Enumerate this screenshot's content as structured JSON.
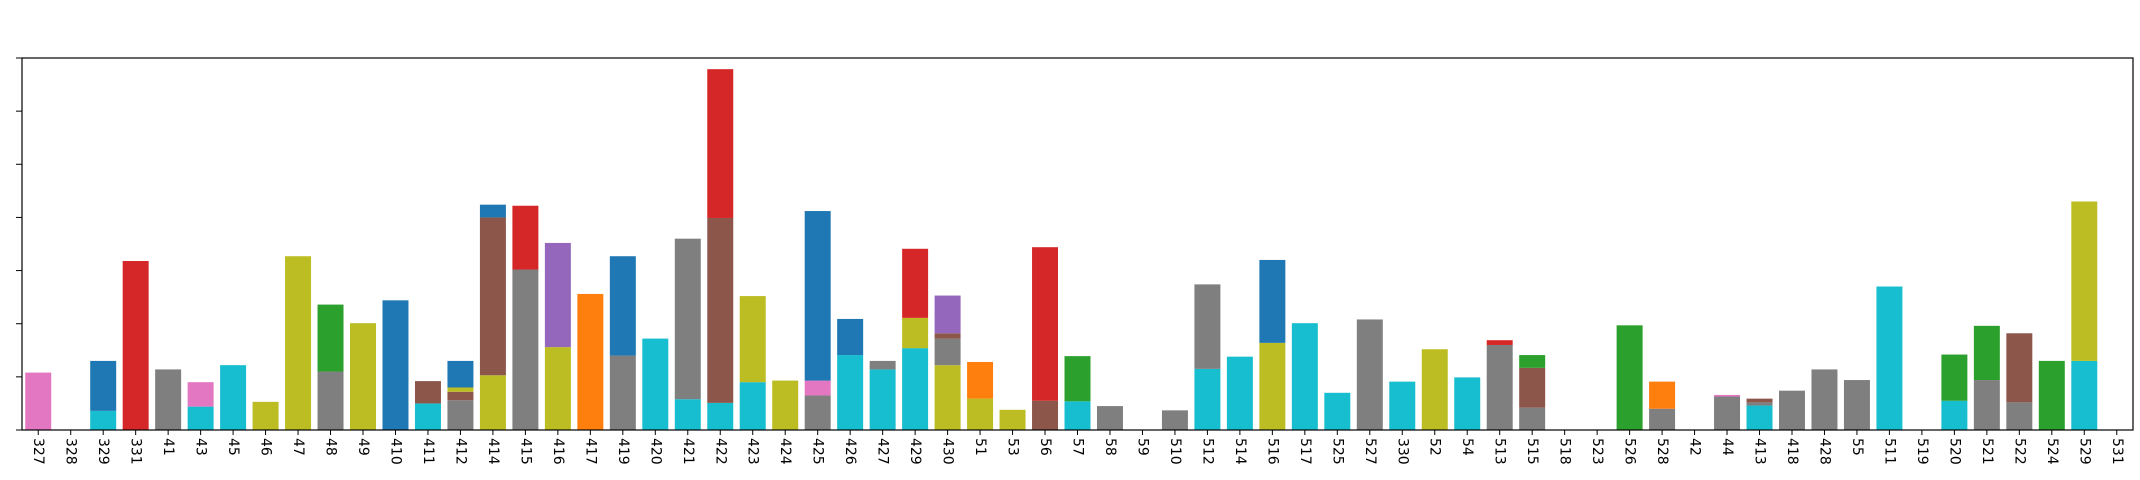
{
  "chart_data": {
    "type": "bar",
    "stacked": true,
    "title": "",
    "xlabel": "",
    "ylabel": "",
    "ylim": [
      0,
      70
    ],
    "grid": false,
    "legend": "none",
    "ytick_values": [
      0,
      10,
      20,
      30,
      40,
      50,
      60,
      70
    ],
    "y_tick_labels_visible": false,
    "colors": {
      "blue": "#1f77b4",
      "orange": "#ff7f0e",
      "green": "#2ca02c",
      "red": "#d62728",
      "purple": "#9467bd",
      "brown": "#8c564b",
      "pink": "#e377c2",
      "gray": "#7f7f7f",
      "olive": "#bcbd22",
      "cyan": "#17becf"
    },
    "categories": [
      "327",
      "328",
      "329",
      "331",
      "41",
      "43",
      "45",
      "46",
      "47",
      "48",
      "49",
      "410",
      "411",
      "412",
      "414",
      "415",
      "416",
      "417",
      "419",
      "420",
      "421",
      "422",
      "423",
      "424",
      "425",
      "426",
      "427",
      "429",
      "430",
      "51",
      "53",
      "56",
      "57",
      "58",
      "59",
      "510",
      "512",
      "514",
      "516",
      "517",
      "525",
      "527",
      "330",
      "52",
      "54",
      "513",
      "515",
      "518",
      "523",
      "526",
      "528",
      "42",
      "44",
      "413",
      "418",
      "428",
      "55",
      "511",
      "519",
      "520",
      "521",
      "522",
      "524",
      "529",
      "531"
    ],
    "stacks": [
      [
        [
          "pink",
          10.8
        ]
      ],
      [],
      [
        [
          "cyan",
          3.6
        ],
        [
          "blue",
          9.4
        ]
      ],
      [
        [
          "red",
          31.8
        ]
      ],
      [
        [
          "gray",
          11.4
        ]
      ],
      [
        [
          "cyan",
          4.4
        ],
        [
          "pink",
          4.6
        ]
      ],
      [
        [
          "cyan",
          12.2
        ]
      ],
      [
        [
          "olive",
          5.3
        ]
      ],
      [
        [
          "olive",
          32.7
        ]
      ],
      [
        [
          "gray",
          11.0
        ],
        [
          "green",
          12.6
        ]
      ],
      [
        [
          "olive",
          20.1
        ]
      ],
      [
        [
          "blue",
          24.4
        ]
      ],
      [
        [
          "cyan",
          5.0
        ],
        [
          "brown",
          4.2
        ]
      ],
      [
        [
          "gray",
          5.6
        ],
        [
          "brown",
          1.6
        ],
        [
          "olive",
          0.8
        ],
        [
          "blue",
          5.0
        ]
      ],
      [
        [
          "olive",
          10.3
        ],
        [
          "brown",
          29.7
        ],
        [
          "blue",
          2.4
        ]
      ],
      [
        [
          "gray",
          30.2
        ],
        [
          "red",
          12.0
        ]
      ],
      [
        [
          "olive",
          15.6
        ],
        [
          "purple",
          19.6
        ]
      ],
      [
        [
          "orange",
          25.6
        ]
      ],
      [
        [
          "gray",
          14.0
        ],
        [
          "blue",
          18.7
        ]
      ],
      [
        [
          "cyan",
          17.2
        ]
      ],
      [
        [
          "cyan",
          5.8
        ],
        [
          "gray",
          30.2
        ]
      ],
      [
        [
          "cyan",
          5.1
        ],
        [
          "brown",
          34.8
        ],
        [
          "red",
          28.0
        ]
      ],
      [
        [
          "cyan",
          9.0
        ],
        [
          "olive",
          16.2
        ]
      ],
      [
        [
          "olive",
          9.3
        ]
      ],
      [
        [
          "gray",
          6.5
        ],
        [
          "pink",
          2.8
        ],
        [
          "blue",
          31.9
        ]
      ],
      [
        [
          "cyan",
          14.1
        ],
        [
          "blue",
          6.8
        ]
      ],
      [
        [
          "cyan",
          11.4
        ],
        [
          "gray",
          1.6
        ]
      ],
      [
        [
          "cyan",
          15.4
        ],
        [
          "olive",
          5.7
        ],
        [
          "red",
          13.0
        ]
      ],
      [
        [
          "olive",
          12.2
        ],
        [
          "gray",
          5.0
        ],
        [
          "brown",
          1.0
        ],
        [
          "purple",
          7.1
        ]
      ],
      [
        [
          "olive",
          5.9
        ],
        [
          "orange",
          6.9
        ]
      ],
      [
        [
          "olive",
          3.8
        ]
      ],
      [
        [
          "brown",
          5.5
        ],
        [
          "red",
          28.9
        ]
      ],
      [
        [
          "cyan",
          5.4
        ],
        [
          "green",
          8.5
        ]
      ],
      [
        [
          "gray",
          4.5
        ]
      ],
      [],
      [
        [
          "gray",
          3.7
        ]
      ],
      [
        [
          "cyan",
          11.5
        ],
        [
          "gray",
          15.9
        ]
      ],
      [
        [
          "cyan",
          13.8
        ]
      ],
      [
        [
          "olive",
          16.4
        ],
        [
          "blue",
          15.6
        ]
      ],
      [
        [
          "cyan",
          20.1
        ]
      ],
      [
        [
          "cyan",
          7.0
        ]
      ],
      [
        [
          "gray",
          20.8
        ]
      ],
      [
        [
          "cyan",
          9.1
        ]
      ],
      [
        [
          "olive",
          15.2
        ]
      ],
      [
        [
          "cyan",
          9.9
        ]
      ],
      [
        [
          "gray",
          16.0
        ],
        [
          "red",
          0.9
        ]
      ],
      [
        [
          "gray",
          4.2
        ],
        [
          "brown",
          7.5
        ],
        [
          "green",
          2.4
        ]
      ],
      [],
      [],
      [
        [
          "green",
          19.7
        ]
      ],
      [
        [
          "gray",
          4.0
        ],
        [
          "orange",
          5.1
        ]
      ],
      [],
      [
        [
          "gray",
          6.3
        ],
        [
          "pink",
          0.3
        ]
      ],
      [
        [
          "cyan",
          4.6
        ],
        [
          "gray",
          0.6
        ],
        [
          "brown",
          0.7
        ]
      ],
      [
        [
          "gray",
          7.4
        ]
      ],
      [
        [
          "gray",
          11.4
        ]
      ],
      [
        [
          "gray",
          9.4
        ]
      ],
      [
        [
          "cyan",
          27.0
        ]
      ],
      [],
      [
        [
          "cyan",
          5.5
        ],
        [
          "green",
          8.7
        ]
      ],
      [
        [
          "gray",
          9.4
        ],
        [
          "green",
          10.2
        ]
      ],
      [
        [
          "gray",
          5.2
        ],
        [
          "brown",
          13.0
        ]
      ],
      [
        [
          "green",
          13.0
        ]
      ],
      [
        [
          "cyan",
          13.0
        ],
        [
          "olive",
          30.0
        ]
      ],
      []
    ]
  }
}
